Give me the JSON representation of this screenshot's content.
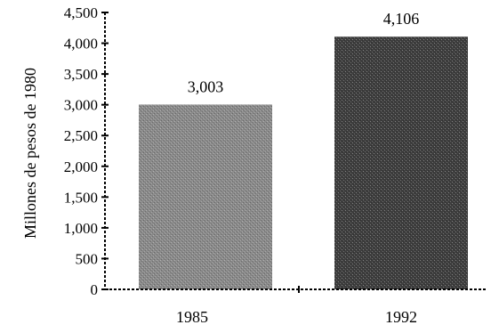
{
  "chart_data": {
    "type": "bar",
    "categories": [
      "1985",
      "1992"
    ],
    "values": [
      3003,
      4106
    ],
    "value_labels": [
      "3,003",
      "4,106"
    ],
    "title": "",
    "xlabel": "",
    "ylabel": "Millones de pesos de 1980",
    "ylim": [
      0,
      4500
    ],
    "yticks": [
      0,
      500,
      1000,
      1500,
      2000,
      2500,
      3000,
      3500,
      4000,
      4500
    ],
    "ytick_labels": [
      "0",
      "500",
      "1,000",
      "1,500",
      "2,000",
      "2,500",
      "3,000",
      "3,500",
      "4,000",
      "4,500"
    ],
    "grid": false,
    "legend": "none",
    "colors": {
      "bar_1985": "#8a8a8a",
      "bar_1992": "#3e3e3e",
      "axis": "#000000"
    }
  }
}
